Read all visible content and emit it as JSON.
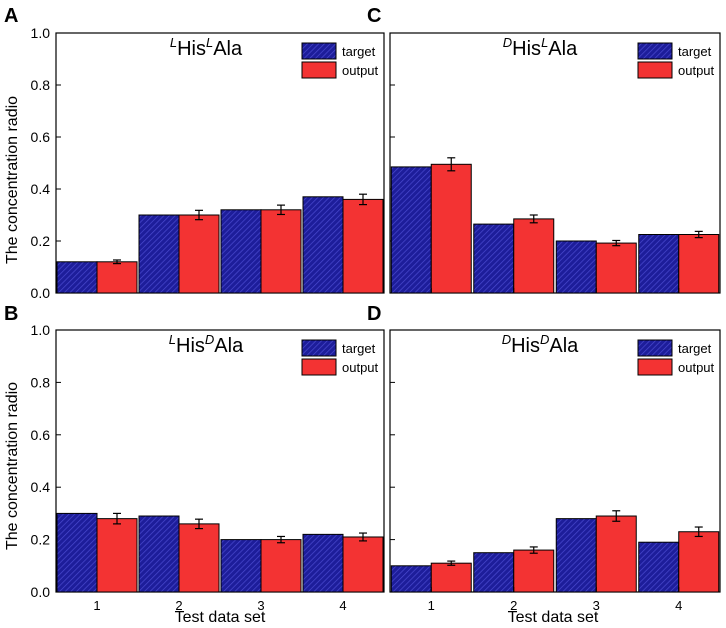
{
  "colors": {
    "target": "#1d1d9a",
    "target_hatch": "#4a4ad0",
    "output": "#f33333",
    "axis": "#000000",
    "background": "#ffffff"
  },
  "shared": {
    "ylabel": "The concentration radio",
    "xlabel": "Test data set",
    "legend": {
      "target": "target",
      "output": "output"
    }
  },
  "chart_data": [
    {
      "type": "bar",
      "panel_letter": "A",
      "title": {
        "sup1": "L",
        "base1": "His",
        "sup2": "L",
        "base2": "Ala"
      },
      "categories": [
        "1",
        "2",
        "3",
        "4"
      ],
      "series": [
        {
          "name": "target",
          "values": [
            0.12,
            0.3,
            0.32,
            0.37
          ]
        },
        {
          "name": "output",
          "values": [
            0.12,
            0.3,
            0.32,
            0.36
          ],
          "errors": [
            0.007,
            0.018,
            0.018,
            0.02
          ]
        }
      ],
      "ylim": [
        0,
        1.0
      ],
      "yticks": [
        "0.0",
        "0.2",
        "0.4",
        "0.6",
        "0.8",
        "1.0"
      ],
      "xlabel": "",
      "ylabel": "The concentration radio",
      "legend_position": "top-right"
    },
    {
      "type": "bar",
      "panel_letter": "C",
      "title": {
        "sup1": "D",
        "base1": "His",
        "sup2": "L",
        "base2": "Ala"
      },
      "categories": [
        "1",
        "2",
        "3",
        "4"
      ],
      "series": [
        {
          "name": "target",
          "values": [
            0.485,
            0.265,
            0.2,
            0.225
          ]
        },
        {
          "name": "output",
          "values": [
            0.495,
            0.285,
            0.192,
            0.225
          ],
          "errors": [
            0.025,
            0.015,
            0.01,
            0.012
          ]
        }
      ],
      "ylim": [
        0,
        1.0
      ],
      "yticks": [],
      "xlabel": "",
      "ylabel": "",
      "legend_position": "top-right"
    },
    {
      "type": "bar",
      "panel_letter": "B",
      "title": {
        "sup1": "L",
        "base1": "His",
        "sup2": "D",
        "base2": "Ala"
      },
      "categories": [
        "1",
        "2",
        "3",
        "4"
      ],
      "series": [
        {
          "name": "target",
          "values": [
            0.3,
            0.29,
            0.2,
            0.22
          ]
        },
        {
          "name": "output",
          "values": [
            0.28,
            0.26,
            0.2,
            0.21
          ],
          "errors": [
            0.02,
            0.018,
            0.012,
            0.015
          ]
        }
      ],
      "ylim": [
        0,
        1.0
      ],
      "yticks": [
        "0.0",
        "0.2",
        "0.4",
        "0.6",
        "0.8",
        "1.0"
      ],
      "xlabel": "Test data set",
      "ylabel": "The concentration radio",
      "legend_position": "top-right"
    },
    {
      "type": "bar",
      "panel_letter": "D",
      "title": {
        "sup1": "D",
        "base1": "His",
        "sup2": "D",
        "base2": "Ala"
      },
      "categories": [
        "1",
        "2",
        "3",
        "4"
      ],
      "series": [
        {
          "name": "target",
          "values": [
            0.1,
            0.15,
            0.28,
            0.19
          ]
        },
        {
          "name": "output",
          "values": [
            0.11,
            0.16,
            0.29,
            0.23
          ],
          "errors": [
            0.008,
            0.012,
            0.02,
            0.018
          ]
        }
      ],
      "ylim": [
        0,
        1.0
      ],
      "yticks": [],
      "xlabel": "Test data set",
      "ylabel": "",
      "legend_position": "top-right"
    }
  ]
}
